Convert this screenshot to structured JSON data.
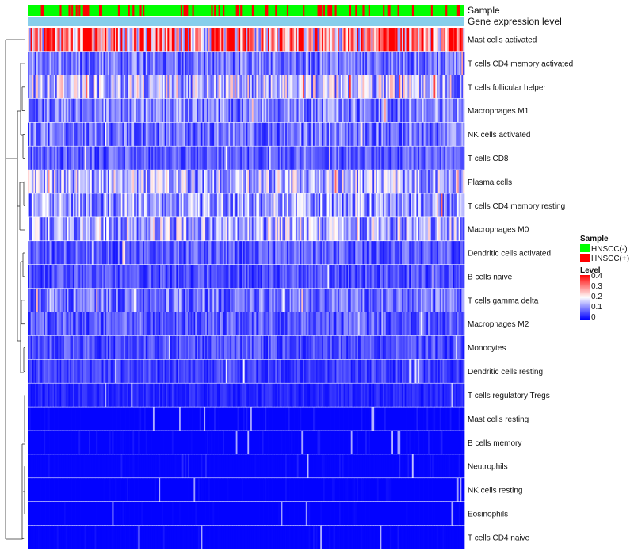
{
  "chart_data": {
    "type": "heatmap",
    "title": "",
    "annotation_tracks": [
      {
        "name": "Sample",
        "color_hex": [
          "#00ff00",
          "#ff0000"
        ]
      },
      {
        "name": "Gene expression level",
        "color_hex": [
          "#87ceeb"
        ]
      }
    ],
    "rows": [
      {
        "label": "Mast cells activated",
        "mean_level": 0.28
      },
      {
        "label": "T cells CD4 memory activated",
        "mean_level": 0.09
      },
      {
        "label": "T cells follicular helper",
        "mean_level": 0.15
      },
      {
        "label": "Macrophages M1",
        "mean_level": 0.1
      },
      {
        "label": "NK cells activated",
        "mean_level": 0.09
      },
      {
        "label": "T cells CD8",
        "mean_level": 0.07
      },
      {
        "label": "Plasma cells",
        "mean_level": 0.14
      },
      {
        "label": "T cells CD4 memory resting",
        "mean_level": 0.12
      },
      {
        "label": "Macrophages M0",
        "mean_level": 0.14
      },
      {
        "label": "Dendritic cells activated",
        "mean_level": 0.07
      },
      {
        "label": "B cells naive",
        "mean_level": 0.06
      },
      {
        "label": "T cells gamma delta",
        "mean_level": 0.09
      },
      {
        "label": "Macrophages M2",
        "mean_level": 0.07
      },
      {
        "label": "Monocytes",
        "mean_level": 0.06
      },
      {
        "label": "Dendritic cells resting",
        "mean_level": 0.05
      },
      {
        "label": "T cells regulatory  Tregs",
        "mean_level": 0.03
      },
      {
        "label": "Mast cells resting",
        "mean_level": 0.015
      },
      {
        "label": "B cells memory",
        "mean_level": 0.015
      },
      {
        "label": "Neutrophils",
        "mean_level": 0.02
      },
      {
        "label": "NK cells resting",
        "mean_level": 0.008
      },
      {
        "label": "Eosinophils",
        "mean_level": 0.006
      },
      {
        "label": "T cells CD4 naive",
        "mean_level": 0.01
      }
    ],
    "n_columns": 300,
    "legend": {
      "sample_title": "Sample",
      "sample_items": [
        {
          "label": "HNSCC(-)",
          "color": "#00ff00"
        },
        {
          "label": "HNSCC(+)",
          "color": "#ff0000"
        }
      ],
      "level_title": "Level",
      "level_ticks": [
        "0.4",
        "0.3",
        "0.2",
        "0.1",
        "0"
      ],
      "level_range": [
        0,
        0.4
      ],
      "color_low": "#0000ff",
      "color_mid": "#ffffff",
      "color_high": "#ff0000"
    },
    "legend_position": "right"
  }
}
